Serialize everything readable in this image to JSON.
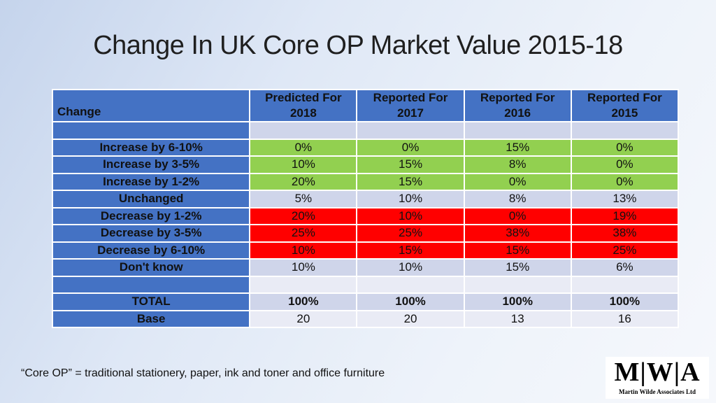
{
  "slide": {
    "title": "Change In UK Core OP Market Value 2015-18",
    "footnote": "“Core OP” = traditional stationery, paper, ink and toner and office furniture"
  },
  "logo": {
    "mark": "M|W|A",
    "subtitle": "Martin Wilde Associates Ltd"
  },
  "table": {
    "header": {
      "label": "Change",
      "columns": [
        [
          "Predicted For",
          "2018"
        ],
        [
          "Reported For",
          "2017"
        ],
        [
          "Reported For",
          "2016"
        ],
        [
          "Reported For",
          "2015"
        ]
      ]
    },
    "rows": [
      {
        "label": "Increase by 6-10%",
        "values": [
          "0%",
          "0%",
          "15%",
          "0%"
        ]
      },
      {
        "label": "Increase by 3-5%",
        "values": [
          "10%",
          "15%",
          "8%",
          "0%"
        ]
      },
      {
        "label": "Increase by 1-2%",
        "values": [
          "20%",
          "15%",
          "0%",
          "0%"
        ]
      },
      {
        "label": "Unchanged",
        "values": [
          "5%",
          "10%",
          "8%",
          "13%"
        ]
      },
      {
        "label": "Decrease by 1-2%",
        "values": [
          "20%",
          "10%",
          "0%",
          "19%"
        ]
      },
      {
        "label": "Decrease by 3-5%",
        "values": [
          "25%",
          "25%",
          "38%",
          "38%"
        ]
      },
      {
        "label": "Decrease by 6-10%",
        "values": [
          "10%",
          "15%",
          "15%",
          "25%"
        ]
      },
      {
        "label": "Don't know",
        "values": [
          "10%",
          "10%",
          "15%",
          "6%"
        ]
      }
    ],
    "total": {
      "label": "TOTAL",
      "values": [
        "100%",
        "100%",
        "100%",
        "100%"
      ]
    },
    "base": {
      "label": "Base",
      "values": [
        "20",
        "20",
        "13",
        "16"
      ]
    }
  },
  "colors": {
    "header_blue": "#4472c4",
    "increase_green": "#92d050",
    "decrease_red": "#ff0000",
    "neutral_grey": "#cfd5ea"
  }
}
